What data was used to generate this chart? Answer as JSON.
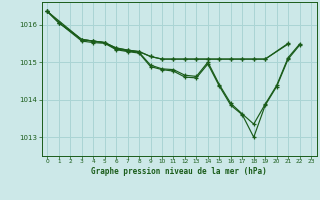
{
  "title": "Graphe pression niveau de la mer (hPa)",
  "background_color": "#cce8e8",
  "line_color": "#1a5c1a",
  "grid_color": "#aad4d4",
  "text_color": "#1a5c1a",
  "xlim": [
    -0.5,
    23.5
  ],
  "ylim": [
    1012.5,
    1016.6
  ],
  "yticks": [
    1013,
    1014,
    1015,
    1016
  ],
  "xticks": [
    0,
    1,
    2,
    3,
    4,
    5,
    6,
    7,
    8,
    9,
    10,
    11,
    12,
    13,
    14,
    15,
    16,
    17,
    18,
    19,
    20,
    21,
    22,
    23
  ],
  "series_1": [
    0,
    1016.35,
    1,
    1016.05,
    3,
    1015.6,
    4,
    1015.56,
    5,
    1015.52,
    6,
    1015.38,
    7,
    1015.32,
    8,
    1015.28,
    9,
    1015.15,
    10,
    1015.08,
    11,
    1015.08,
    12,
    1015.08,
    13,
    1015.08,
    14,
    1015.08,
    15,
    1015.08,
    16,
    1015.08,
    17,
    1015.08,
    18,
    1015.08,
    19,
    1015.08,
    21,
    1015.48
  ],
  "series_2": [
    0,
    1016.35,
    1,
    1016.05,
    3,
    1015.6,
    4,
    1015.56,
    5,
    1015.52,
    6,
    1015.35,
    7,
    1015.3,
    8,
    1015.26,
    9,
    1014.92,
    10,
    1014.82,
    11,
    1014.8,
    12,
    1014.65,
    13,
    1014.62,
    14,
    1015.0,
    15,
    1014.4,
    16,
    1013.9,
    17,
    1013.62,
    18,
    1013.35,
    19,
    1013.88,
    20,
    1014.38,
    21,
    1015.12,
    22,
    1015.48
  ],
  "series_3": [
    0,
    1016.35,
    1,
    1016.05,
    3,
    1015.56,
    4,
    1015.52,
    5,
    1015.5,
    6,
    1015.33,
    7,
    1015.28,
    8,
    1015.24,
    9,
    1014.88,
    10,
    1014.8,
    11,
    1014.76,
    12,
    1014.6,
    13,
    1014.58,
    14,
    1014.95,
    15,
    1014.36,
    16,
    1013.85,
    17,
    1013.6,
    18,
    1013.0,
    19,
    1013.85,
    20,
    1014.35,
    21,
    1015.08,
    22,
    1015.45
  ],
  "series_4": [
    0,
    1016.35,
    3,
    1015.6,
    4,
    1015.56,
    5,
    1015.52,
    6,
    1015.37,
    7,
    1015.32,
    8,
    1015.28,
    9,
    1015.15,
    10,
    1015.08,
    11,
    1015.08,
    12,
    1015.08,
    13,
    1015.08,
    14,
    1015.08,
    15,
    1015.08,
    16,
    1015.08,
    17,
    1015.08,
    18,
    1015.08,
    19,
    1015.08,
    21,
    1015.5
  ]
}
